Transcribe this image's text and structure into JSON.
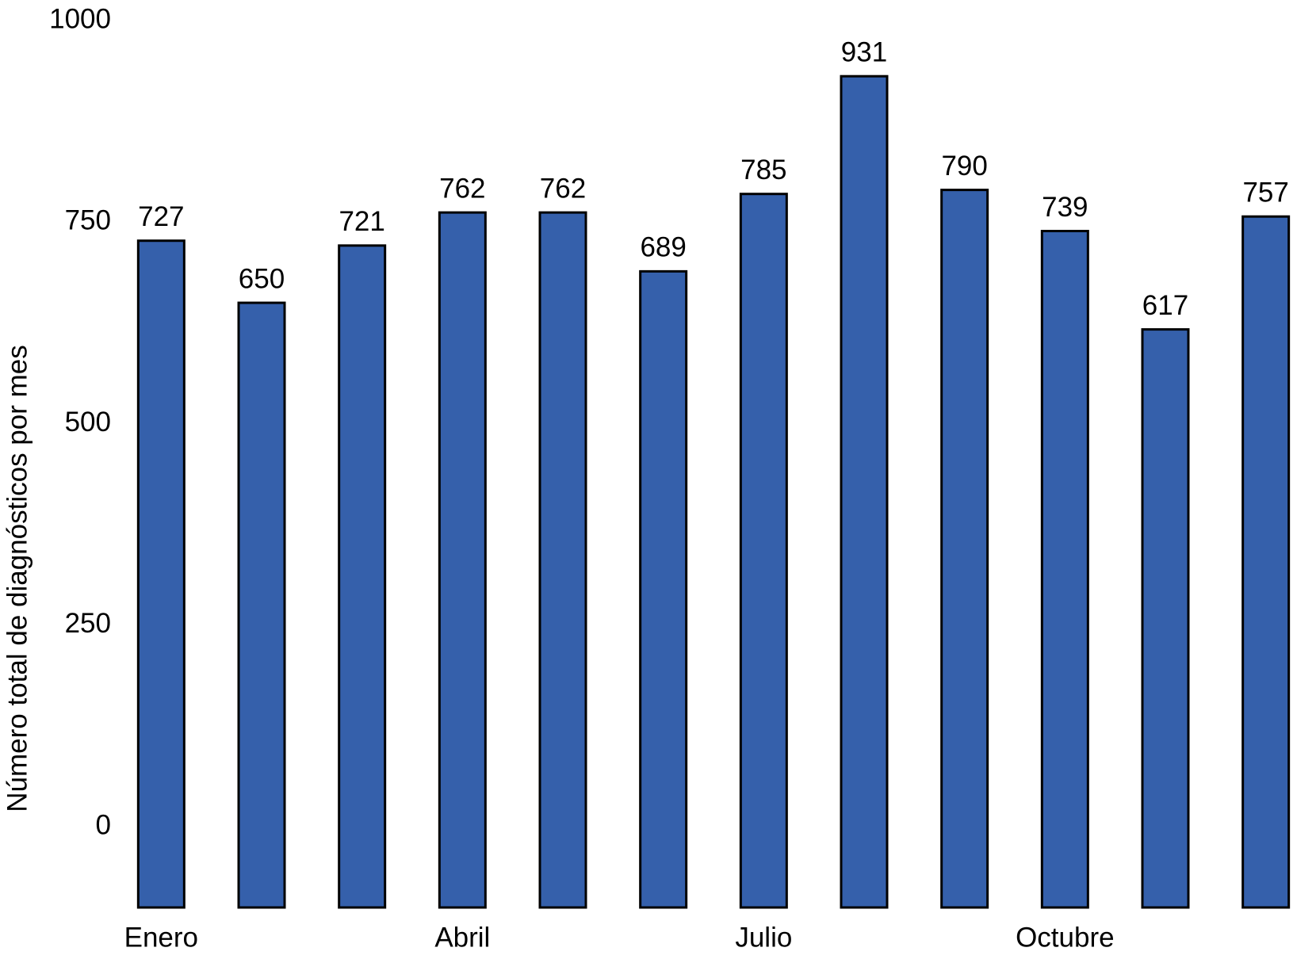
{
  "chart_data": {
    "type": "bar",
    "y_label": "Número total de diagnósticos por mes",
    "categories": [
      "Enero",
      null,
      null,
      "Abril",
      null,
      null,
      "Julio",
      null,
      null,
      "Octubre",
      null,
      null
    ],
    "values": [
      727,
      650,
      721,
      762,
      762,
      689,
      785,
      931,
      790,
      739,
      617,
      757
    ],
    "color": "#3560ab",
    "ylim": [
      -100,
      1000
    ],
    "yticks": [
      0,
      250,
      500,
      750,
      1000
    ],
    "grid": false
  }
}
